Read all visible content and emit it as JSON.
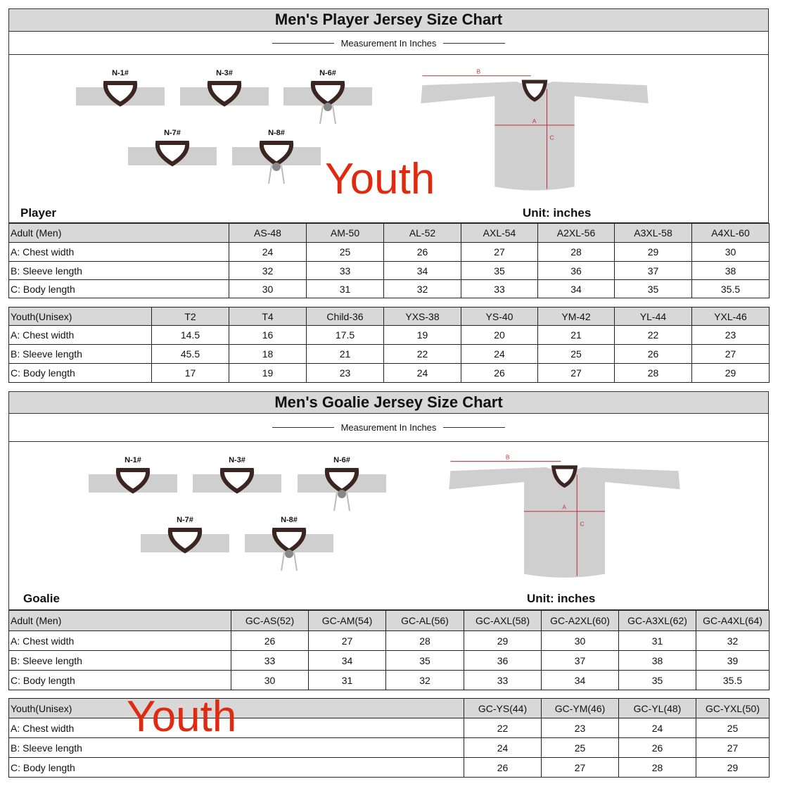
{
  "player": {
    "title": "Men's Player Jersey  Size  Chart",
    "measurement": "Measurement In Inches",
    "section": "Player",
    "unit": "Unit: inches",
    "necklines": [
      "N-1#",
      "N-3#",
      "N-6#",
      "N-7#",
      "N-8#"
    ],
    "diagram_labels": {
      "a": "A",
      "b": "B",
      "c": "C"
    },
    "adult": {
      "header": [
        "Adult (Men)",
        "AS-48",
        "AM-50",
        "AL-52",
        "AXL-54",
        "A2XL-56",
        "A3XL-58",
        "A4XL-60"
      ],
      "rows": [
        [
          "A: Chest width",
          "24",
          "25",
          "26",
          "27",
          "28",
          "29",
          "30"
        ],
        [
          "B: Sleeve length",
          "32",
          "33",
          "34",
          "35",
          "36",
          "37",
          "38"
        ],
        [
          "C: Body length",
          "30",
          "31",
          "32",
          "33",
          "34",
          "35",
          "35.5"
        ]
      ]
    },
    "youth": {
      "overlay": "Youth",
      "header": [
        "Youth(Unisex)",
        "T2",
        "T4",
        "Child-36",
        "YXS-38",
        "YS-40",
        "YM-42",
        "YL-44",
        "YXL-46"
      ],
      "rows": [
        [
          "A: Chest width",
          "14.5",
          "16",
          "17.5",
          "19",
          "20",
          "21",
          "22",
          "23"
        ],
        [
          "B: Sleeve length",
          "45.5",
          "18",
          "21",
          "22",
          "24",
          "25",
          "26",
          "27"
        ],
        [
          "C: Body length",
          "17",
          "19",
          "23",
          "24",
          "26",
          "27",
          "28",
          "29"
        ]
      ]
    }
  },
  "goalie": {
    "title": "Men's Goalie  Jersey  Size  Chart",
    "measurement": "Measurement In Inches",
    "section": "Goalie",
    "unit": "Unit: inches",
    "necklines": [
      "N-1#",
      "N-3#",
      "N-6#",
      "N-7#",
      "N-8#"
    ],
    "diagram_labels": {
      "a": "A",
      "b": "B",
      "c": "C"
    },
    "adult": {
      "header": [
        "Adult (Men)",
        "GC-AS(52)",
        "GC-AM(54)",
        "GC-AL(56)",
        "GC-AXL(58)",
        "GC-A2XL(60)",
        "GC-A3XL(62)",
        "GC-A4XL(64)"
      ],
      "rows": [
        [
          "A: Chest width",
          "26",
          "27",
          "28",
          "29",
          "30",
          "31",
          "32"
        ],
        [
          "B: Sleeve length",
          "33",
          "34",
          "35",
          "36",
          "37",
          "38",
          "39"
        ],
        [
          "C: Body length",
          "30",
          "31",
          "32",
          "33",
          "34",
          "35",
          "35.5"
        ]
      ]
    },
    "youth": {
      "overlay": "Youth",
      "header": [
        "Youth(Unisex)",
        "GC-YS(44)",
        "GC-YM(46)",
        "GC-YL(48)",
        "GC-YXL(50)"
      ],
      "rows": [
        [
          "A: Chest width",
          "22",
          "23",
          "24",
          "25"
        ],
        [
          "B: Sleeve length",
          "24",
          "25",
          "26",
          "27"
        ],
        [
          "C: Body length",
          "26",
          "27",
          "28",
          "29"
        ]
      ]
    }
  },
  "colors": {
    "header_bg": "#d8d8d8",
    "overlay": "#e02a10",
    "jersey": "#cfcfcf",
    "measure_line": "#c0303a"
  }
}
